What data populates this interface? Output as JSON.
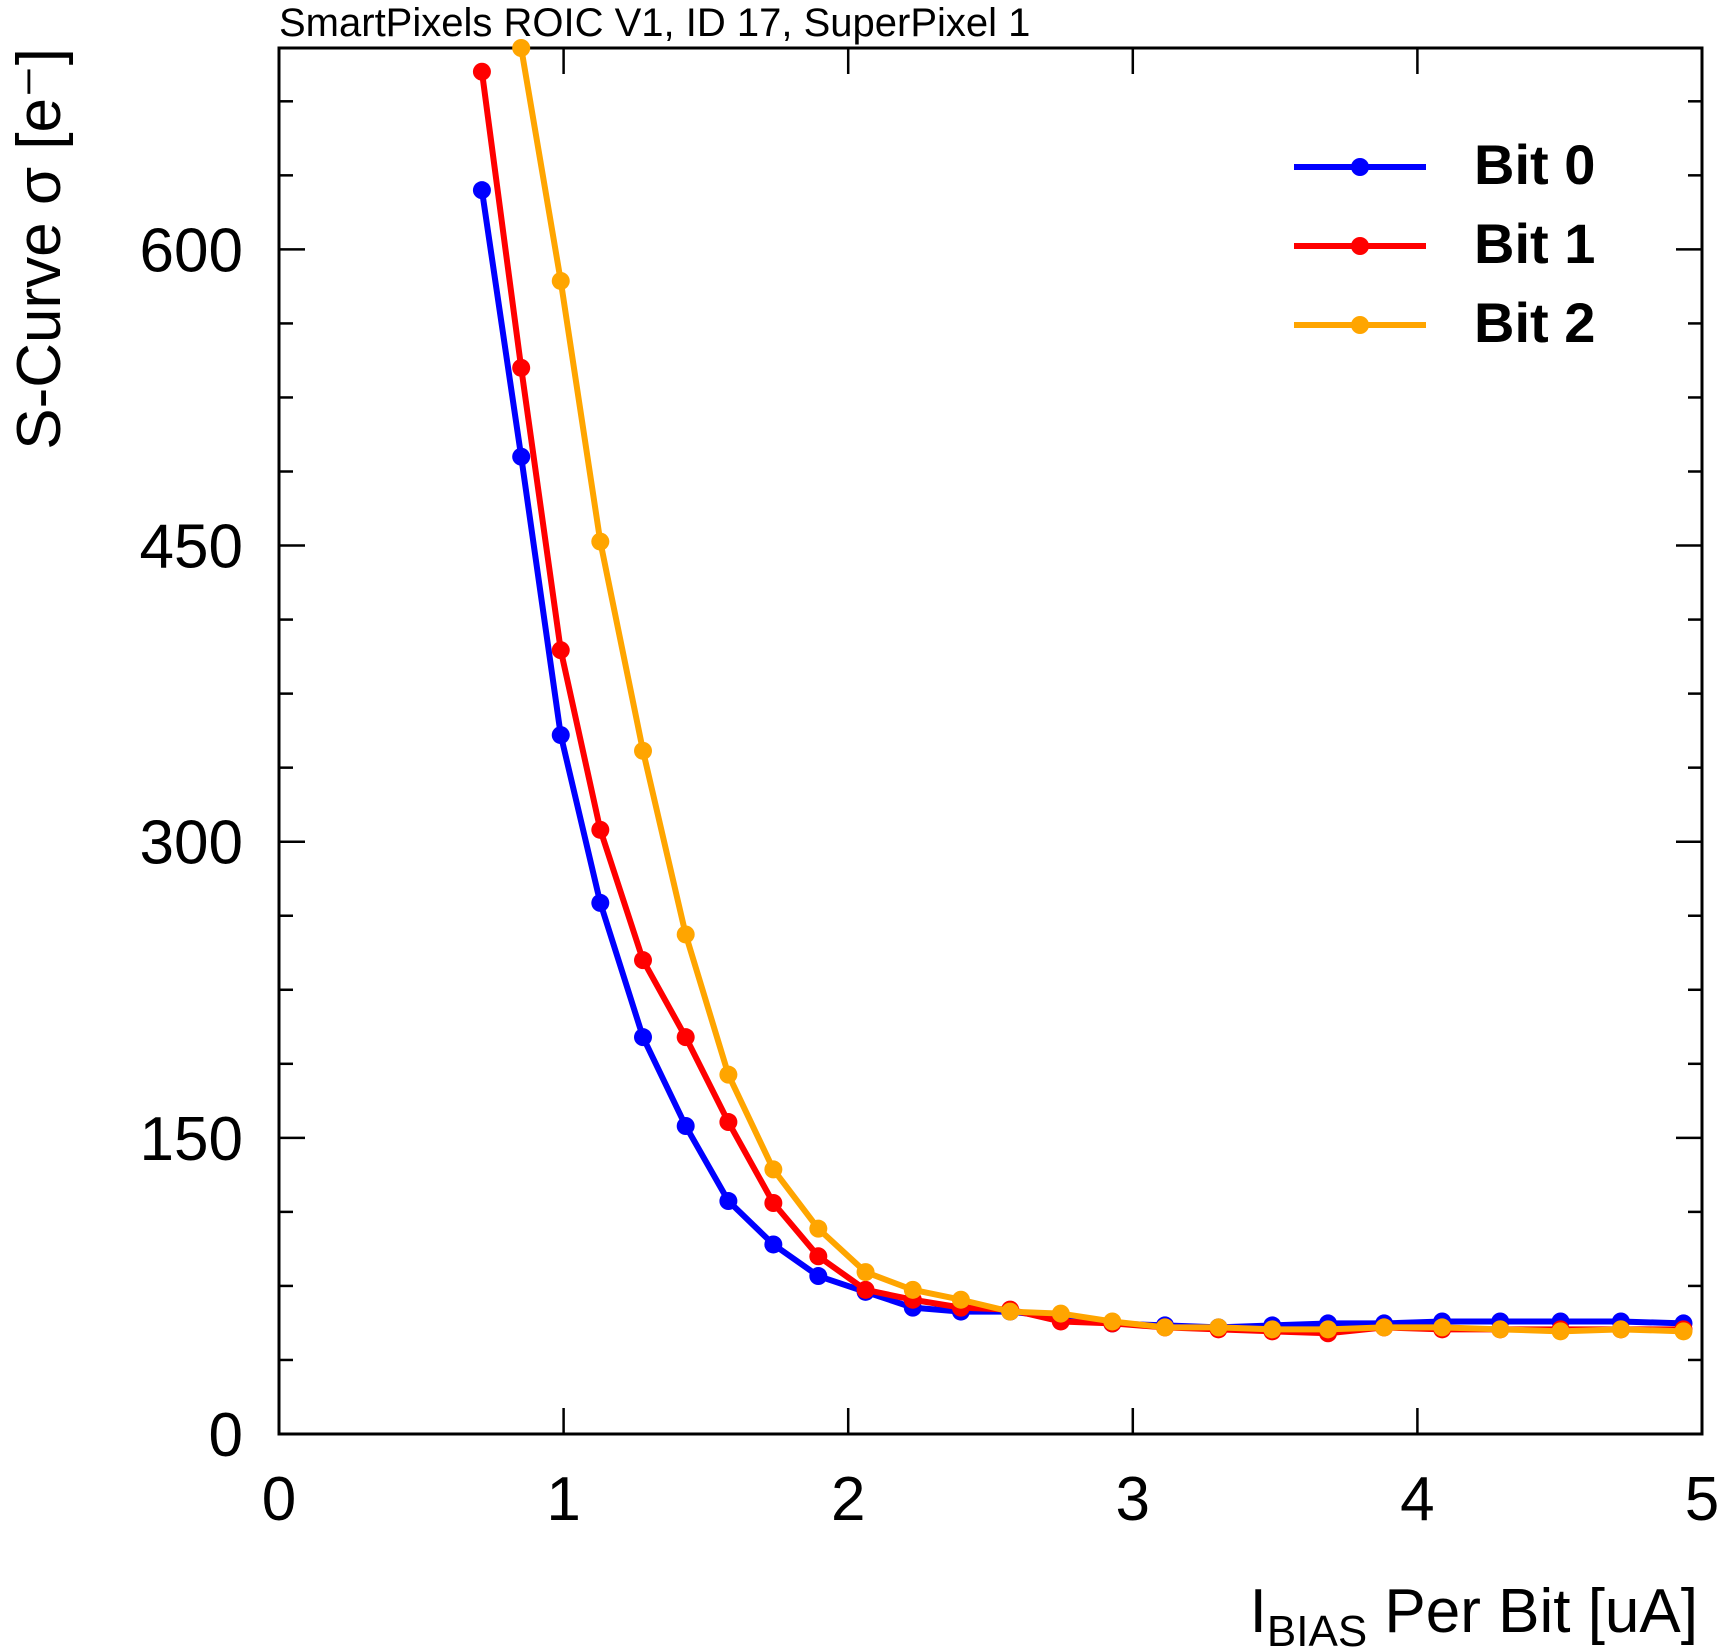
{
  "chart_data": {
    "type": "line",
    "title": "SmartPixels ROIC V1, ID 17, SuperPixel 1",
    "xlabel": {
      "main": "I",
      "sub": "BIAS",
      "rest": " Per Bit [uA]"
    },
    "ylabel": "S-Curve σ [e⁻]",
    "x": [
      0.713,
      0.851,
      0.99,
      1.129,
      1.279,
      1.429,
      1.579,
      1.737,
      1.895,
      2.061,
      2.227,
      2.396,
      2.569,
      2.747,
      2.928,
      3.113,
      3.301,
      3.49,
      3.686,
      3.883,
      4.087,
      4.291,
      4.503,
      4.715,
      4.935
    ],
    "series": [
      {
        "name": "Bit 0",
        "color": "#0000ff",
        "values": [
          630,
          495,
          354,
          269,
          201,
          156,
          118,
          96,
          80,
          72,
          64,
          62,
          62,
          59,
          56,
          55,
          54,
          55,
          56,
          56,
          57,
          57,
          57,
          57,
          56
        ]
      },
      {
        "name": "Bit 1",
        "color": "#ff0000",
        "values": [
          690,
          540,
          397,
          306,
          240,
          201,
          158,
          117,
          90,
          73,
          68,
          64,
          63,
          57,
          56,
          54,
          53,
          52,
          51,
          54,
          53,
          53,
          53,
          53,
          53
        ]
      },
      {
        "name": "Bit 2",
        "color": "#ffa500",
        "values": [
          null,
          702,
          584,
          452,
          346,
          253,
          182,
          134,
          104,
          82,
          73,
          68,
          62,
          61,
          57,
          54,
          54,
          53,
          53,
          54,
          54,
          53,
          52,
          53,
          52
        ]
      }
    ],
    "xlim": [
      0,
      5
    ],
    "xticks": [
      0,
      1,
      2,
      3,
      4,
      5
    ],
    "ylim": [
      0,
      702
    ],
    "yticks": [
      0,
      150,
      300,
      450,
      600
    ],
    "yminorticks": [
      37.5,
      75,
      112.5,
      187.5,
      225,
      262.5,
      337.5,
      375,
      412.5,
      487.5,
      525,
      562.5,
      637.5,
      675
    ],
    "legend": "upper right"
  }
}
